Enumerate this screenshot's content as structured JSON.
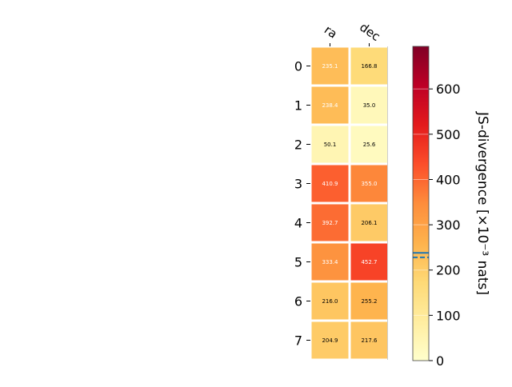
{
  "chart_data": {
    "type": "heatmap",
    "columns": [
      "ra",
      "dec"
    ],
    "rows": [
      "0",
      "1",
      "2",
      "3",
      "4",
      "5",
      "6",
      "7"
    ],
    "values": [
      [
        235.1,
        166.8
      ],
      [
        238.4,
        35.0
      ],
      [
        50.1,
        25.6
      ],
      [
        410.9,
        355.0
      ],
      [
        392.7,
        206.1
      ],
      [
        333.4,
        452.7
      ],
      [
        216.0,
        255.2
      ],
      [
        204.9,
        217.6
      ]
    ],
    "cell_labels": [
      [
        "235.1",
        "166.8"
      ],
      [
        "238.4",
        "35.0"
      ],
      [
        "50.1",
        "25.6"
      ],
      [
        "410.9",
        "355.0"
      ],
      [
        "392.7",
        "206.1"
      ],
      [
        "333.4",
        "452.7"
      ],
      [
        "216.0",
        "255.2"
      ],
      [
        "204.9",
        "217.6"
      ]
    ],
    "colormap": "YlOrRd",
    "colorbar": {
      "label": "JS-divergence [×10⁻³ nats]",
      "range": [
        0,
        694
      ],
      "ticks": [
        0,
        100,
        200,
        300,
        400,
        500,
        600
      ],
      "tick_labels": [
        "0",
        "100",
        "200",
        "300",
        "400",
        "500",
        "600"
      ],
      "solid_marker": 238,
      "dashed_marker": 228,
      "marker_color": "#1f77b4"
    }
  }
}
